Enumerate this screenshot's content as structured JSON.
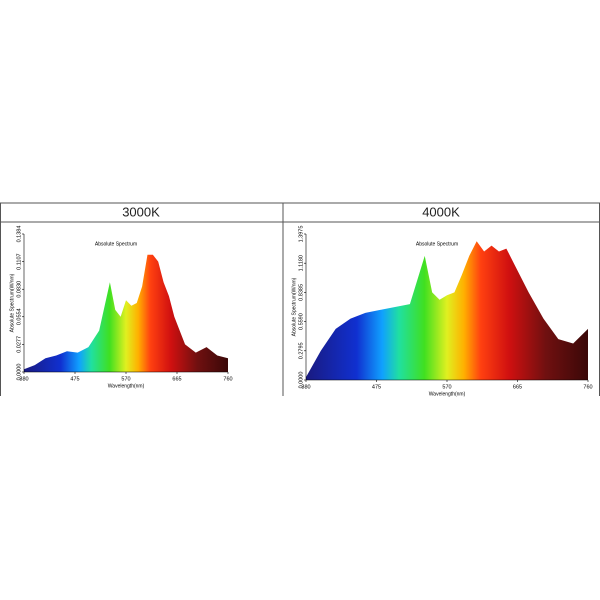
{
  "table": {
    "headers": [
      "3000K",
      "4000K"
    ]
  },
  "chart_data": [
    {
      "type": "area",
      "title": "Absolute Spectrum",
      "xlabel": "Wavelength(nm)",
      "ylabel": "Absolute Spectrum(W/nm)",
      "x": [
        380,
        400,
        420,
        440,
        460,
        480,
        500,
        520,
        540,
        550,
        560,
        570,
        580,
        590,
        600,
        610,
        620,
        630,
        640,
        650,
        660,
        680,
        700,
        720,
        740,
        760
      ],
      "values": [
        0.0028,
        0.0069,
        0.0138,
        0.0166,
        0.0208,
        0.0194,
        0.0249,
        0.0415,
        0.09,
        0.0623,
        0.0554,
        0.072,
        0.0664,
        0.0692,
        0.0858,
        0.1176,
        0.1176,
        0.1107,
        0.09,
        0.0761,
        0.0554,
        0.0277,
        0.0194,
        0.0249,
        0.0166,
        0.0138
      ],
      "xlim": [
        380,
        760
      ],
      "xticks": [
        380,
        475,
        570,
        665,
        760
      ],
      "ylim": [
        0,
        0.1384
      ],
      "yticks": [
        {
          "value": 0,
          "label": "0.0000"
        },
        0.0277,
        0.0554,
        {
          "value": 0.083,
          "label": "0.0830"
        },
        0.1107,
        0.1384
      ]
    },
    {
      "type": "area",
      "title": "Absolute Spectrum",
      "xlabel": "Wavelength(nm)",
      "ylabel": "Absolute Spectrum(W/nm)",
      "x": [
        380,
        400,
        420,
        440,
        460,
        480,
        500,
        520,
        540,
        550,
        560,
        570,
        580,
        590,
        600,
        610,
        620,
        630,
        640,
        650,
        660,
        680,
        700,
        720,
        740,
        760
      ],
      "values": [
        0.028,
        0.2795,
        0.4891,
        0.587,
        0.6429,
        0.6708,
        0.6988,
        0.7267,
        1.1879,
        0.8385,
        0.7686,
        0.8106,
        0.8385,
        1.0062,
        1.1879,
        1.3276,
        1.2298,
        1.2857,
        1.2298,
        1.2578,
        1.118,
        0.8385,
        0.587,
        0.3913,
        0.3494,
        0.4891
      ],
      "xlim": [
        380,
        760
      ],
      "xticks": [
        380,
        475,
        570,
        665,
        760
      ],
      "ylim": [
        0,
        1.3975
      ],
      "yticks": [
        {
          "value": 0,
          "label": "0.0000"
        },
        0.2795,
        {
          "value": 0.559,
          "label": "0.5590"
        },
        0.8385,
        {
          "value": 1.118,
          "label": "1.1180"
        },
        1.3975
      ]
    }
  ]
}
